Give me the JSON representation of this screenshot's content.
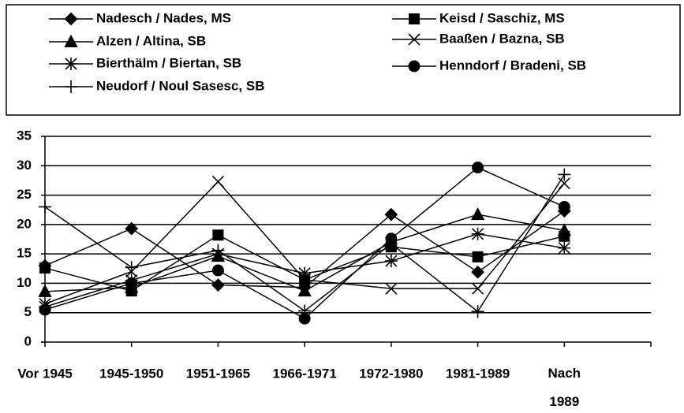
{
  "chart_data": {
    "type": "line",
    "categories": [
      "Vor 1945",
      "1945-1950",
      "1951-1965",
      "1966-1971",
      "1972-1980",
      "1981-1989",
      "Nach 1989"
    ],
    "series": [
      {
        "name": "Nadesch / Nades, MS",
        "marker": "diamond",
        "color": "#000000",
        "values": [
          13,
          19.3,
          9.7,
          9.3,
          21.7,
          11.9,
          22.3
        ]
      },
      {
        "name": "Keisd / Saschiz, MS",
        "marker": "square",
        "color": "#000000",
        "values": [
          12.6,
          8.7,
          18.2,
          10.6,
          16.2,
          14.5,
          18
        ]
      },
      {
        "name": "Alzen / Altina, SB",
        "marker": "triangle",
        "color": "#000000",
        "values": [
          8.6,
          9.3,
          14.6,
          8.7,
          17,
          21.7,
          19
        ]
      },
      {
        "name": "Baaßen / Bazna, SB",
        "marker": "x",
        "color": "#000000",
        "values": [
          6.5,
          12,
          27.3,
          10.6,
          9.1,
          9.1,
          27
        ]
      },
      {
        "name": "Bierthälm / Biertan, SB",
        "marker": "asterisk",
        "color": "#000000",
        "values": [
          6,
          10.5,
          15,
          11.7,
          13.8,
          18.4,
          16
        ]
      },
      {
        "name": "Henndorf / Bradeni, SB",
        "marker": "circle",
        "color": "#000000",
        "values": [
          5.5,
          10,
          12.2,
          4,
          17.6,
          29.7,
          23
        ]
      },
      {
        "name": "Neudorf / Noul Sasesc, SB",
        "marker": "plus",
        "color": "#000000",
        "values": [
          23,
          12.7,
          15.6,
          5.3,
          16.7,
          5.2,
          28.5
        ]
      }
    ],
    "ylim": [
      0,
      35
    ],
    "yticks": [
      0,
      5,
      10,
      15,
      20,
      25,
      30,
      35
    ],
    "grid": true
  }
}
